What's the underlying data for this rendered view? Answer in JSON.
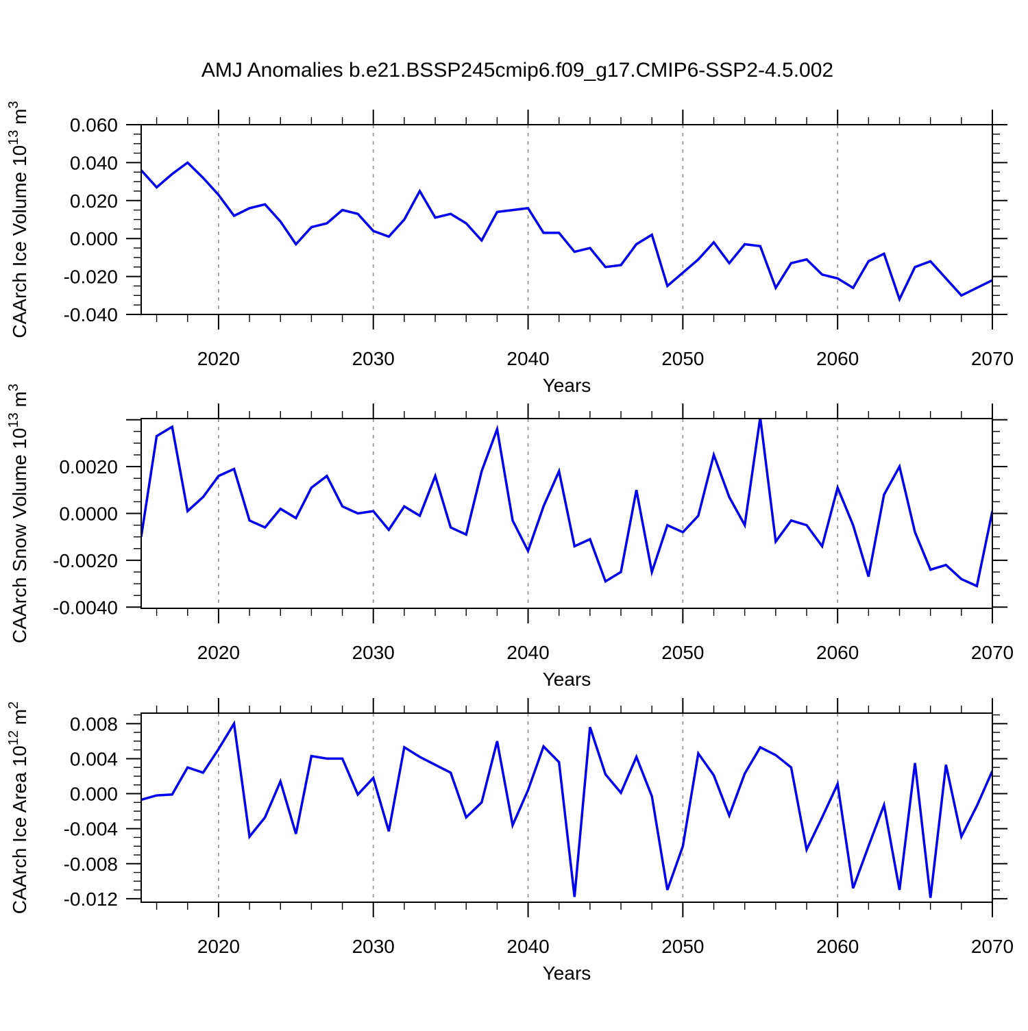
{
  "title": "AMJ Anomalies b.e21.BSSP245cmip6.f09_g17.CMIP6-SSP2-4.5.002",
  "colors": {
    "line": "#0000EE",
    "frame": "#000000",
    "grid": "#999999",
    "text": "#000000"
  },
  "chart_data": [
    {
      "type": "line",
      "name": "ice-volume",
      "ylabel_parts": [
        {
          "t": "CAArch Ice Volume 10"
        },
        {
          "t": "13",
          "sup": true
        },
        {
          "t": " m"
        },
        {
          "t": "3",
          "sup": true
        }
      ],
      "xlabel": "Years",
      "xlim": [
        2015,
        2070
      ],
      "ylim": [
        -0.04,
        0.06
      ],
      "x_start": 2015,
      "x_step": 1,
      "xticks": [
        {
          "v": 2020,
          "label": "2020"
        },
        {
          "v": 2030,
          "label": "2030"
        },
        {
          "v": 2040,
          "label": "2040"
        },
        {
          "v": 2050,
          "label": "2050"
        },
        {
          "v": 2060,
          "label": "2060"
        },
        {
          "v": 2070,
          "label": "2070"
        }
      ],
      "x_minor_step": 2,
      "grid_x": [
        2020,
        2030,
        2040,
        2050,
        2060
      ],
      "yticks": [
        {
          "v": 0.06,
          "label": "0.060"
        },
        {
          "v": 0.04,
          "label": "0.040"
        },
        {
          "v": 0.02,
          "label": "0.020"
        },
        {
          "v": 0.0,
          "label": "0.000"
        },
        {
          "v": -0.02,
          "label": "-0.020"
        },
        {
          "v": -0.04,
          "label": "-0.040"
        }
      ],
      "y_major_step": 0.02,
      "y_minor_step": 0.005,
      "values": [
        0.036,
        0.027,
        0.034,
        0.04,
        0.032,
        0.023,
        0.012,
        0.016,
        0.018,
        0.009,
        -0.003,
        0.006,
        0.008,
        0.015,
        0.013,
        0.004,
        0.001,
        0.01,
        0.025,
        0.011,
        0.013,
        0.008,
        -0.001,
        0.014,
        0.015,
        0.016,
        0.003,
        0.003,
        -0.007,
        -0.005,
        -0.015,
        -0.014,
        -0.003,
        0.002,
        -0.025,
        -0.018,
        -0.011,
        -0.002,
        -0.013,
        -0.003,
        -0.004,
        -0.026,
        -0.013,
        -0.011,
        -0.019,
        -0.021,
        -0.026,
        -0.012,
        -0.008,
        -0.032,
        -0.015,
        -0.012,
        -0.021,
        -0.03,
        -0.026,
        -0.022
      ]
    },
    {
      "type": "line",
      "name": "snow-volume",
      "ylabel_parts": [
        {
          "t": "CAArch Snow Volume 10"
        },
        {
          "t": "13",
          "sup": true
        },
        {
          "t": " m"
        },
        {
          "t": "3",
          "sup": true
        }
      ],
      "xlabel": "Years",
      "xlim": [
        2015,
        2070
      ],
      "ylim": [
        -0.00405,
        0.00405
      ],
      "x_start": 2015,
      "x_step": 1,
      "xticks": [
        {
          "v": 2020,
          "label": "2020"
        },
        {
          "v": 2030,
          "label": "2030"
        },
        {
          "v": 2040,
          "label": "2040"
        },
        {
          "v": 2050,
          "label": "2050"
        },
        {
          "v": 2060,
          "label": "2060"
        },
        {
          "v": 2070,
          "label": "2070"
        }
      ],
      "x_minor_step": 2,
      "grid_x": [
        2020,
        2030,
        2040,
        2050,
        2060
      ],
      "yticks": [
        {
          "v": 0.004,
          "label": ""
        },
        {
          "v": 0.002,
          "label": "0.0020"
        },
        {
          "v": 0.0,
          "label": "0.0000"
        },
        {
          "v": -0.002,
          "label": "-0.0020"
        },
        {
          "v": -0.004,
          "label": "-0.0040"
        }
      ],
      "y_major_step": 0.002,
      "y_minor_step": 0.0005,
      "values": [
        -0.001,
        0.0033,
        0.0037,
        0.0001,
        0.0007,
        0.0016,
        0.0019,
        -0.0003,
        -0.0006,
        0.0002,
        -0.0002,
        0.0011,
        0.0016,
        0.0003,
        0.0,
        0.0001,
        -0.0007,
        0.0003,
        -0.0001,
        0.0016,
        -0.0006,
        -0.0009,
        0.0018,
        0.0036,
        -0.0003,
        -0.0016,
        0.0003,
        0.0018,
        -0.0014,
        -0.0011,
        -0.0029,
        -0.0025,
        0.001,
        -0.0025,
        -0.0005,
        -0.0008,
        -0.0001,
        0.0025,
        0.0007,
        -0.0005,
        0.0041,
        -0.0012,
        -0.0003,
        -0.0005,
        -0.0014,
        0.0011,
        -0.0005,
        -0.0027,
        0.0008,
        0.002,
        -0.0008,
        -0.0024,
        -0.0022,
        -0.0028,
        -0.0031,
        0.0001
      ]
    },
    {
      "type": "line",
      "name": "ice-area",
      "ylabel_parts": [
        {
          "t": "CAArch Ice Area 10"
        },
        {
          "t": "12",
          "sup": true
        },
        {
          "t": " m"
        },
        {
          "t": "2",
          "sup": true
        }
      ],
      "xlabel": "Years",
      "xlim": [
        2015,
        2070
      ],
      "ylim": [
        -0.0124,
        0.0092
      ],
      "x_start": 2015,
      "x_step": 1,
      "xticks": [
        {
          "v": 2020,
          "label": "2020"
        },
        {
          "v": 2030,
          "label": "2030"
        },
        {
          "v": 2040,
          "label": "2040"
        },
        {
          "v": 2050,
          "label": "2050"
        },
        {
          "v": 2060,
          "label": "2060"
        },
        {
          "v": 2070,
          "label": "2070"
        }
      ],
      "x_minor_step": 2,
      "grid_x": [
        2020,
        2030,
        2040,
        2050,
        2060
      ],
      "yticks": [
        {
          "v": 0.008,
          "label": "0.008"
        },
        {
          "v": 0.004,
          "label": "0.004"
        },
        {
          "v": 0.0,
          "label": "0.000"
        },
        {
          "v": -0.004,
          "label": "-0.004"
        },
        {
          "v": -0.008,
          "label": "-0.008"
        },
        {
          "v": -0.012,
          "label": "-0.012"
        }
      ],
      "y_major_step": 0.004,
      "y_minor_step": 0.001,
      "values": [
        -0.0007,
        -0.0002,
        -0.0001,
        0.003,
        0.0024,
        0.0051,
        0.008,
        -0.0049,
        -0.0027,
        0.0014,
        -0.0046,
        0.0043,
        0.004,
        0.004,
        -0.0001,
        0.0018,
        -0.0043,
        0.0053,
        0.0042,
        0.0033,
        0.0024,
        -0.0027,
        -0.001,
        0.006,
        -0.0036,
        0.0004,
        0.0054,
        0.0036,
        -0.0118,
        0.0076,
        0.0022,
        0.0001,
        0.0042,
        -0.0003,
        -0.011,
        -0.006,
        0.0046,
        0.0021,
        -0.0025,
        0.0023,
        0.0053,
        0.0044,
        0.003,
        -0.0064,
        -0.0027,
        0.0011,
        -0.0108,
        -0.006,
        -0.0013,
        -0.011,
        0.0035,
        -0.0119,
        0.0033,
        -0.0049,
        -0.0014,
        0.0026
      ]
    }
  ]
}
